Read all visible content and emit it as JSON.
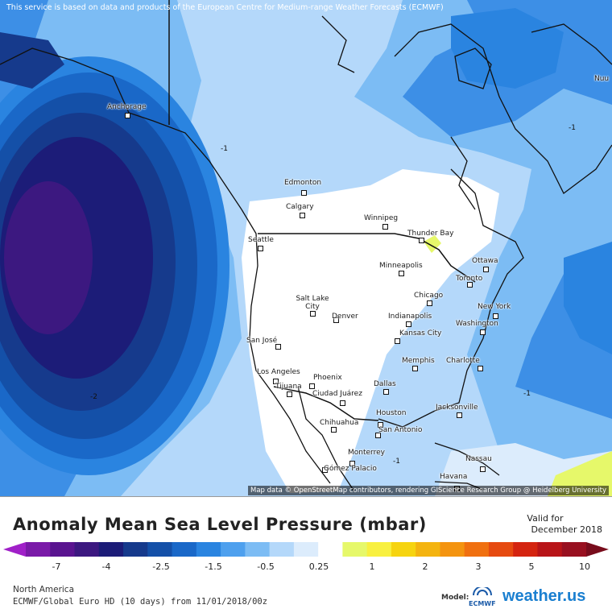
{
  "map": {
    "disclaimer": "This service is based on data and products of the European Centre for Medium-range Weather Forecasts (ECMWF)",
    "attribution": "Map data © OpenStreetMap contributors, rendering GIScience Research Group @ Heidelberg University",
    "contour_labels": [
      "-1",
      "-1",
      "-1",
      "-2",
      "-1"
    ],
    "cities": [
      {
        "name": "Anchorage"
      },
      {
        "name": "Edmonton"
      },
      {
        "name": "Calgary"
      },
      {
        "name": "Winnipeg"
      },
      {
        "name": "Thunder Bay"
      },
      {
        "name": "Seattle"
      },
      {
        "name": "Minneapolis"
      },
      {
        "name": "Ottawa"
      },
      {
        "name": "Toronto"
      },
      {
        "name": "Chicago"
      },
      {
        "name": "Salt Lake City"
      },
      {
        "name": "Denver"
      },
      {
        "name": "Indianapolis"
      },
      {
        "name": "New York"
      },
      {
        "name": "Washington"
      },
      {
        "name": "Kansas City"
      },
      {
        "name": "San José"
      },
      {
        "name": "Memphis"
      },
      {
        "name": "Charlotte"
      },
      {
        "name": "Los Angeles"
      },
      {
        "name": "Phoenix"
      },
      {
        "name": "Dallas"
      },
      {
        "name": "Tijuana"
      },
      {
        "name": "Ciudad Juárez"
      },
      {
        "name": "Jacksonville"
      },
      {
        "name": "Houston"
      },
      {
        "name": "Chihuahua"
      },
      {
        "name": "San Antonio"
      },
      {
        "name": "Monterrey"
      },
      {
        "name": "Gómez Palacio"
      },
      {
        "name": "Nassau"
      },
      {
        "name": "Havana"
      },
      {
        "name": "Nuu"
      }
    ]
  },
  "legend": {
    "title": "Anomaly Mean Sea Level Pressure (mbar)",
    "valid_label": "Valid for",
    "valid_value": "December 2018",
    "colors": [
      "#a020c8",
      "#7a1aa8",
      "#5a1490",
      "#3c1880",
      "#1c1c78",
      "#163a8c",
      "#1450a8",
      "#1a68c8",
      "#2a84e0",
      "#4ea0ee",
      "#7cbcf4",
      "#b4d8fa",
      "#dcecfc",
      "#ffffff",
      "#e6f86a",
      "#f8f040",
      "#f6d410",
      "#f4b410",
      "#f49410",
      "#f07010",
      "#e64a10",
      "#d42410",
      "#b81418",
      "#981020",
      "#780c1c"
    ],
    "ticks": [
      "-7",
      "-4",
      "-2.5",
      "-1.5",
      "-0.5",
      "0.25",
      "1",
      "2",
      "3",
      "5",
      "10"
    ],
    "region": "North America",
    "model_run": "ECMWF/Global Euro HD (10 days) from 11/01/2018/00z",
    "model_label": "Model:",
    "model_logo": "ECMWF",
    "brand": "weather.us"
  }
}
